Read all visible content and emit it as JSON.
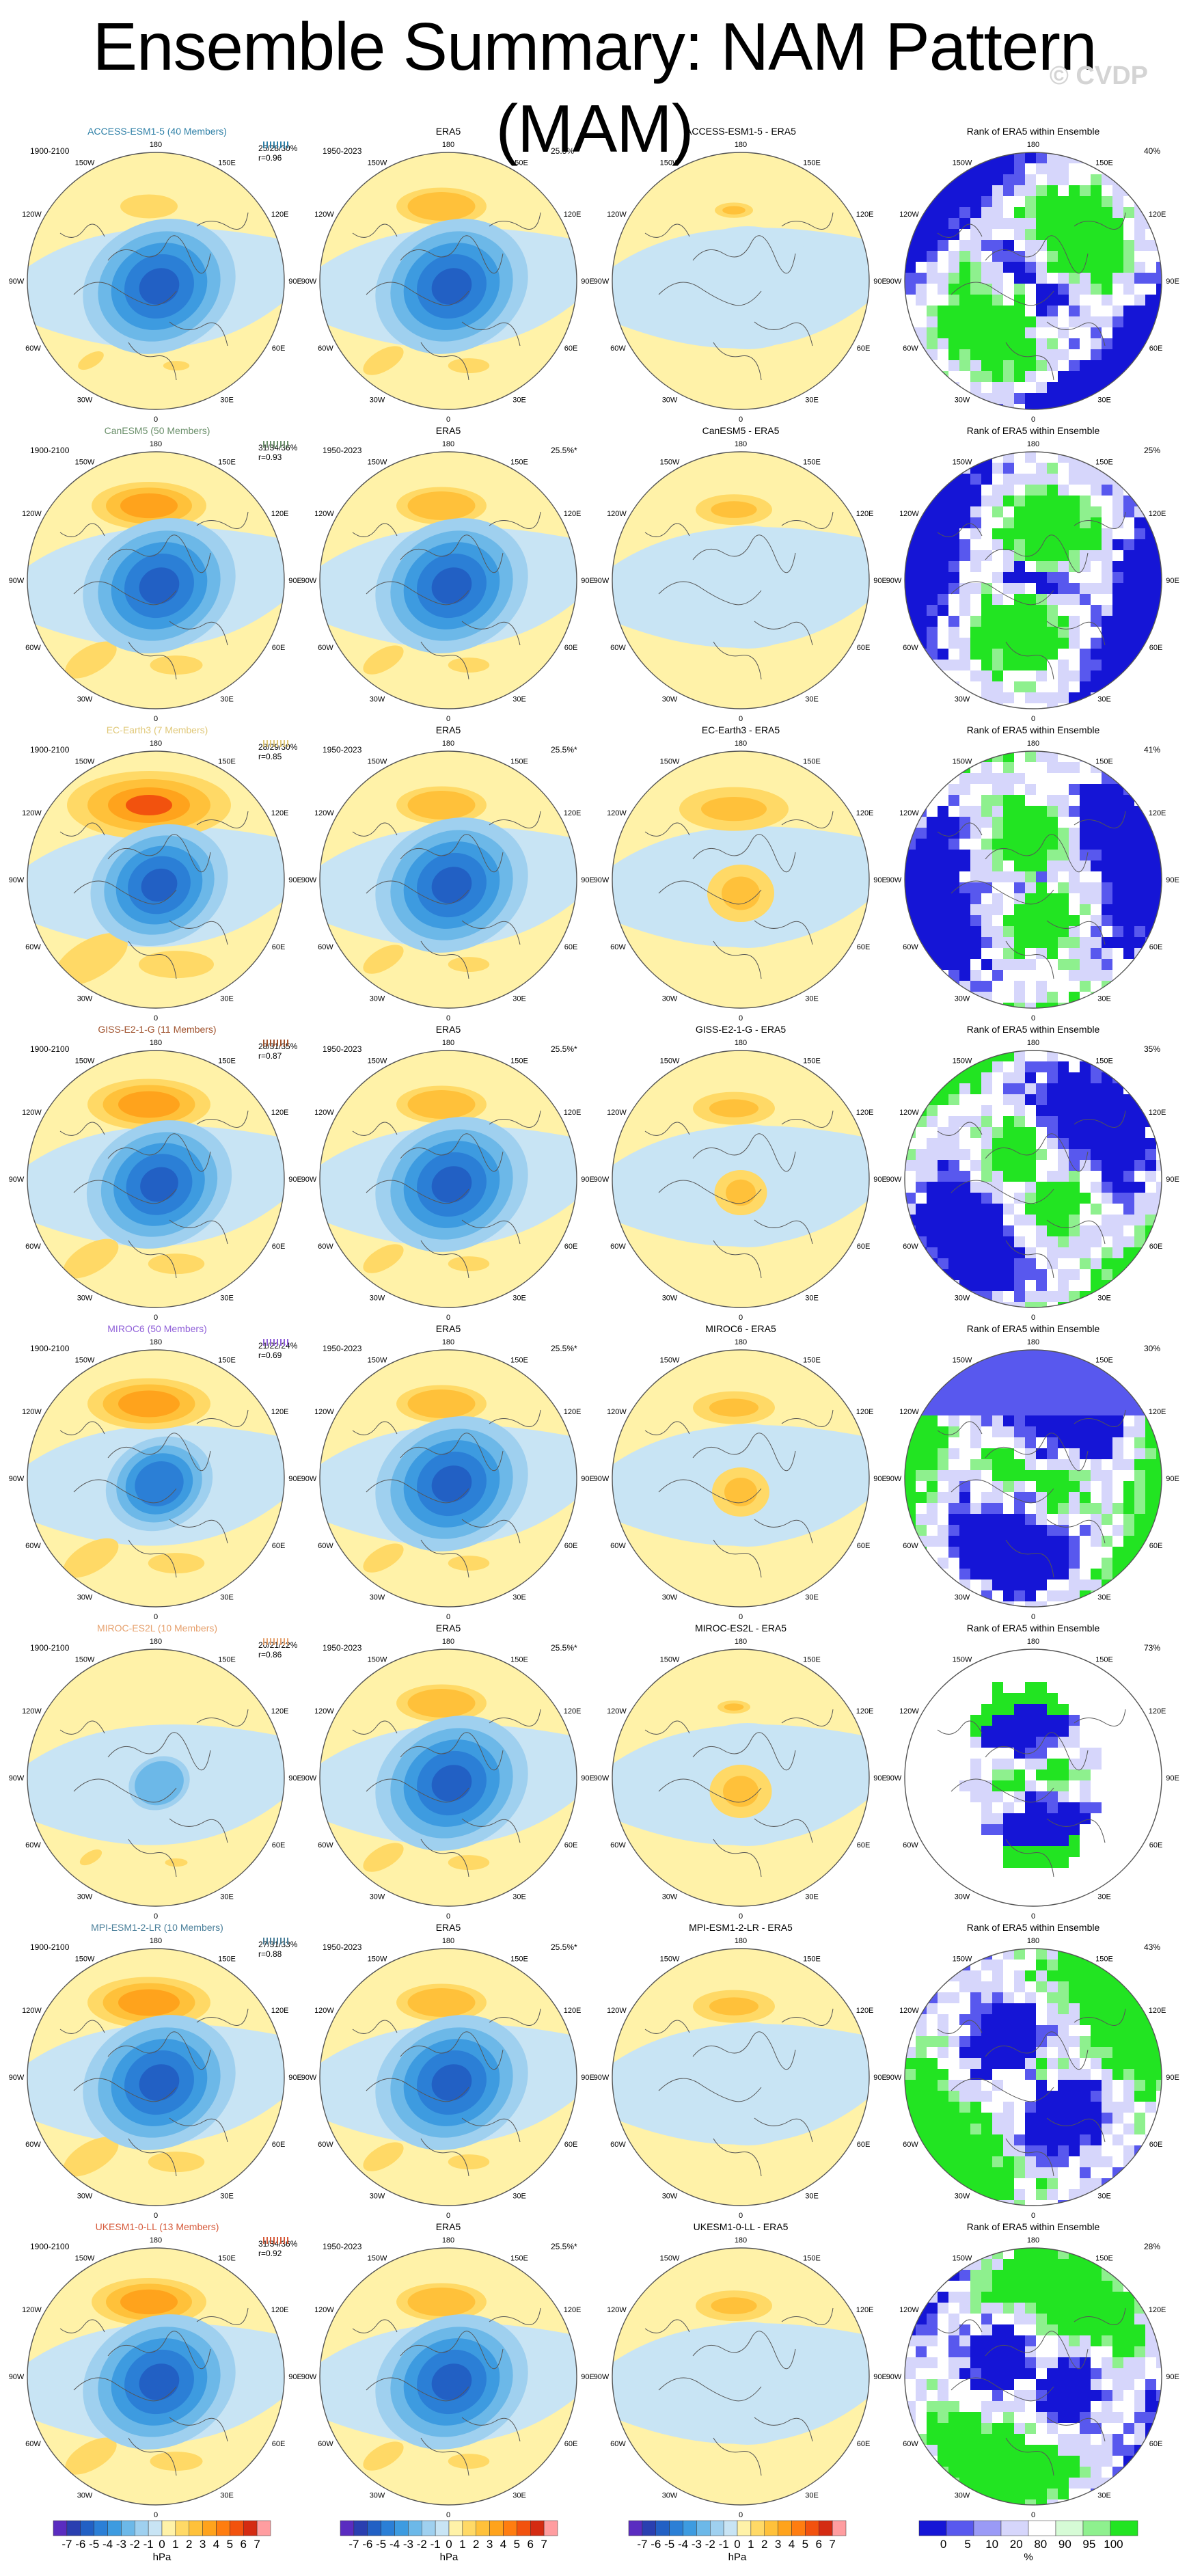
{
  "title": "Ensemble Summary: NAM Pattern (MAM)",
  "watermark": "© CVDP",
  "colors": {
    "neg": [
      "#c8e4f4",
      "#9fd0ef",
      "#6cb8e8",
      "#3d9be0",
      "#2b7fd6",
      "#2260c4",
      "#2a3fb0",
      "#5a2cc0"
    ],
    "pos": [
      "#fff2a8",
      "#ffd966",
      "#ffc13a",
      "#ffa31c",
      "#ff7d10",
      "#f2520e",
      "#d42b12",
      "#ff9da0"
    ],
    "rank": [
      "#1515d6",
      "#5858ee",
      "#9a9af6",
      "#d6d6fb",
      "#ffffff",
      "#d6fbd6",
      "#8ef08e",
      "#22e422"
    ],
    "model_title_colors": [
      "#2d7fa6",
      "#6a8f6a",
      "#e0c878",
      "#a0522d",
      "#8f5fd8",
      "#e6a16e",
      "#4a7f9a",
      "#d65a3a"
    ]
  },
  "column_headers": {
    "rank": "Rank of ERA5 within Ensemble",
    "obs": "ERA5"
  },
  "map_labels": {
    "top": "180",
    "bottom": "0",
    "left": "90W",
    "right": "90E",
    "ul1": "150W",
    "ul2": "120W",
    "ur1": "150E",
    "ur2": "120E",
    "ll1": "60W",
    "ll2": "30W",
    "lr1": "60E",
    "lr2": "30E"
  },
  "obs_period": "1950-2023",
  "obs_pct": "25.5%*",
  "model_period": "1900-2100",
  "rows": [
    {
      "model": "ACCESS-ESM1-5",
      "title": "ACCESS-ESM1-5 (40 Members)",
      "stats": "25/28/30%",
      "r": "r=0.96",
      "diff": "ACCESS-ESM1-5 - ERA5",
      "rank_pct": "40%",
      "mod_amp": 1.0,
      "mod_pos": 0.35,
      "diff_amp": 0.25,
      "rank_pat": 0
    },
    {
      "model": "CanESM5",
      "title": "CanESM5 (50 Members)",
      "stats": "31/34/36%",
      "r": "r=0.93",
      "diff": "CanESM5 - ERA5",
      "rank_pct": "25%",
      "mod_amp": 1.0,
      "mod_pos": 0.7,
      "diff_amp": 0.35,
      "rank_pat": 1
    },
    {
      "model": "EC-Earth3",
      "title": "EC-Earth3 (7 Members)",
      "stats": "28/29/30%",
      "r": "r=0.85",
      "diff": "EC-Earth3 - ERA5",
      "rank_pct": "41%",
      "mod_amp": 0.9,
      "mod_pos": 1.0,
      "diff_amp": 0.7,
      "rank_pat": 2
    },
    {
      "model": "GISS-E2-1-G",
      "title": "GISS-E2-1-G (11 Members)",
      "stats": "28/31/35%",
      "r": "r=0.87",
      "diff": "GISS-E2-1-G - ERA5",
      "rank_pct": "35%",
      "mod_amp": 0.95,
      "mod_pos": 0.75,
      "diff_amp": 0.55,
      "rank_pat": 3
    },
    {
      "model": "MIROC6",
      "title": "MIROC6 (50 Members)",
      "stats": "21/22/24%",
      "r": "r=0.69",
      "diff": "MIROC6 - ERA5",
      "rank_pct": "30%",
      "mod_amp": 0.7,
      "mod_pos": 0.75,
      "diff_amp": 0.6,
      "rank_pat": 4
    },
    {
      "model": "MIROC-ES2L",
      "title": "MIROC-ES2L (10 Members)",
      "stats": "20/21/22%",
      "r": "r=0.86",
      "diff": "MIROC-ES2L - ERA5",
      "rank_pct": "73%",
      "mod_amp": 0.4,
      "mod_pos": 0.3,
      "diff_amp": 0.65,
      "rank_pat": 5
    },
    {
      "model": "MPI-ESM1-2-LR",
      "title": "MPI-ESM1-2-LR (10 Members)",
      "stats": "27/31/33%",
      "r": "r=0.88",
      "diff": "MPI-ESM1-2-LR - ERA5",
      "rank_pct": "43%",
      "mod_amp": 1.0,
      "mod_pos": 0.75,
      "diff_amp": 0.45,
      "rank_pat": 6
    },
    {
      "model": "UKESM1-0-LL",
      "title": "UKESM1-0-LL (13 Members)",
      "stats": "31/34/36%",
      "r": "r=0.92",
      "diff": "UKESM1-0-LL - ERA5",
      "rank_pct": "28%",
      "mod_amp": 1.0,
      "mod_pos": 0.7,
      "diff_amp": 0.4,
      "rank_pat": 7
    }
  ],
  "colorbar_hpa": {
    "ticks": [
      "-7",
      "-6",
      "-5",
      "-4",
      "-3",
      "-2",
      "-1",
      "0",
      "1",
      "2",
      "3",
      "4",
      "5",
      "6",
      "7"
    ],
    "unit": "hPa"
  },
  "colorbar_pct": {
    "ticks": [
      "0",
      "5",
      "10",
      "20",
      "80",
      "90",
      "95",
      "100"
    ],
    "unit": "%"
  }
}
